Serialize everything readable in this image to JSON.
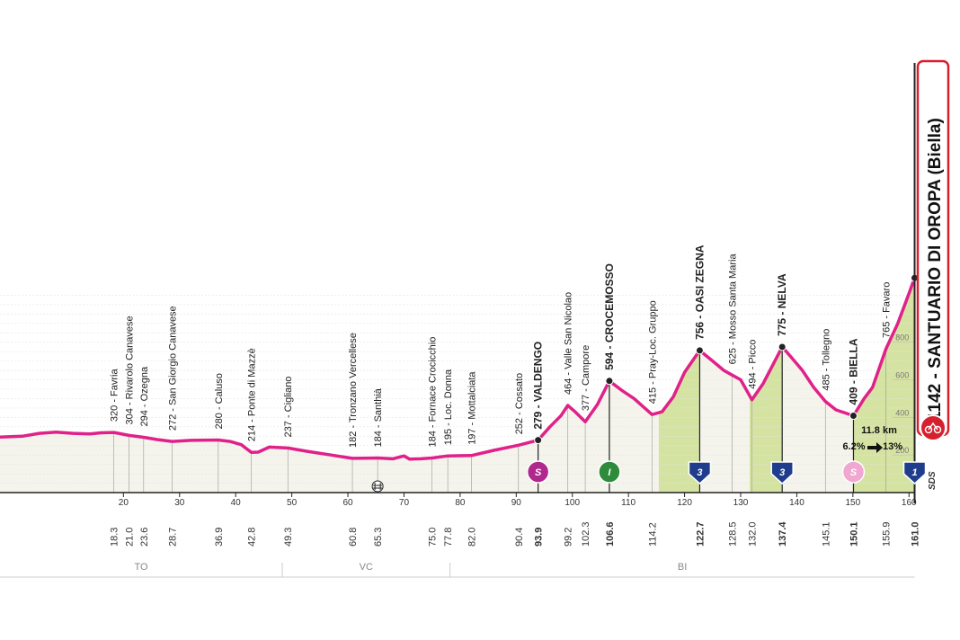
{
  "chart_data": {
    "type": "area",
    "xlim": [
      -2,
      163
    ],
    "ylim": [
      0,
      1200
    ],
    "x_ticks": [
      20,
      30,
      40,
      50,
      60,
      70,
      80,
      90,
      100,
      110,
      120,
      130,
      140,
      150,
      160
    ],
    "alt_ticks": [
      200,
      400,
      600,
      800
    ],
    "profile": [
      {
        "x": -2,
        "y": 295
      },
      {
        "x": 2,
        "y": 300
      },
      {
        "x": 5,
        "y": 315
      },
      {
        "x": 8,
        "y": 322
      },
      {
        "x": 11,
        "y": 315
      },
      {
        "x": 14,
        "y": 312
      },
      {
        "x": 16,
        "y": 318
      },
      {
        "x": 18.3,
        "y": 320
      },
      {
        "x": 21.0,
        "y": 304
      },
      {
        "x": 23.6,
        "y": 294
      },
      {
        "x": 26,
        "y": 282
      },
      {
        "x": 28.7,
        "y": 272
      },
      {
        "x": 32,
        "y": 278
      },
      {
        "x": 36.9,
        "y": 280
      },
      {
        "x": 39,
        "y": 272
      },
      {
        "x": 41,
        "y": 255
      },
      {
        "x": 42.8,
        "y": 214
      },
      {
        "x": 44,
        "y": 215
      },
      {
        "x": 46,
        "y": 242
      },
      {
        "x": 49.3,
        "y": 237
      },
      {
        "x": 53,
        "y": 218
      },
      {
        "x": 57,
        "y": 200
      },
      {
        "x": 60.8,
        "y": 182
      },
      {
        "x": 63,
        "y": 183
      },
      {
        "x": 65.3,
        "y": 184
      },
      {
        "x": 68,
        "y": 180
      },
      {
        "x": 70,
        "y": 195
      },
      {
        "x": 71,
        "y": 178
      },
      {
        "x": 73,
        "y": 180
      },
      {
        "x": 75.0,
        "y": 184
      },
      {
        "x": 77.8,
        "y": 195
      },
      {
        "x": 82.0,
        "y": 197
      },
      {
        "x": 86,
        "y": 225
      },
      {
        "x": 90.4,
        "y": 252
      },
      {
        "x": 93.9,
        "y": 279
      },
      {
        "x": 96,
        "y": 350
      },
      {
        "x": 98,
        "y": 410
      },
      {
        "x": 99.2,
        "y": 464
      },
      {
        "x": 100.5,
        "y": 430
      },
      {
        "x": 102.3,
        "y": 377
      },
      {
        "x": 104.5,
        "y": 470
      },
      {
        "x": 106.6,
        "y": 594
      },
      {
        "x": 109,
        "y": 540
      },
      {
        "x": 111,
        "y": 500
      },
      {
        "x": 114.2,
        "y": 415
      },
      {
        "x": 116,
        "y": 430
      },
      {
        "x": 118,
        "y": 510
      },
      {
        "x": 120,
        "y": 640
      },
      {
        "x": 122.7,
        "y": 756
      },
      {
        "x": 125,
        "y": 700
      },
      {
        "x": 127,
        "y": 650
      },
      {
        "x": 128.5,
        "y": 625
      },
      {
        "x": 130,
        "y": 600
      },
      {
        "x": 132.0,
        "y": 494
      },
      {
        "x": 134,
        "y": 580
      },
      {
        "x": 137.4,
        "y": 775
      },
      {
        "x": 139,
        "y": 720
      },
      {
        "x": 141,
        "y": 650
      },
      {
        "x": 143,
        "y": 560
      },
      {
        "x": 145.1,
        "y": 485
      },
      {
        "x": 147,
        "y": 440
      },
      {
        "x": 150.1,
        "y": 409
      },
      {
        "x": 152,
        "y": 500
      },
      {
        "x": 153.5,
        "y": 560
      },
      {
        "x": 155.9,
        "y": 765
      },
      {
        "x": 158,
        "y": 900
      },
      {
        "x": 160,
        "y": 1060
      },
      {
        "x": 161.0,
        "y": 1142
      }
    ],
    "shaded_climbs": [
      [
        115.4,
        122.7
      ],
      [
        131.6,
        137.4
      ],
      [
        150.1,
        161.0
      ]
    ],
    "waypoints": [
      {
        "km": 18.3,
        "km_label": "18.3",
        "x": 18.3,
        "y": 320,
        "label": "320 - Favria",
        "bold": false
      },
      {
        "km": 21.0,
        "km_label": "21.0",
        "x": 21.0,
        "y": 304,
        "label": "304 - Rivarolo Canavese",
        "bold": false
      },
      {
        "km": 23.6,
        "km_label": "23.6",
        "x": 23.6,
        "y": 294,
        "label": "294 - Ozegna",
        "bold": false
      },
      {
        "km": 28.7,
        "km_label": "28.7",
        "x": 28.7,
        "y": 272,
        "label": "272 - San Giorgio Canavese",
        "bold": false
      },
      {
        "km": 36.9,
        "km_label": "36.9",
        "x": 36.9,
        "y": 280,
        "label": "280 - Caluso",
        "bold": false
      },
      {
        "km": 42.8,
        "km_label": "42.8",
        "x": 42.8,
        "y": 214,
        "label": "214 - Ponte di Mazzè",
        "bold": false
      },
      {
        "km": 49.3,
        "km_label": "49.3",
        "x": 49.3,
        "y": 237,
        "label": "237 - Cigliano",
        "bold": false
      },
      {
        "km": 60.8,
        "km_label": "60.8",
        "x": 60.8,
        "y": 182,
        "label": "182 - Tronzano Vercellese",
        "bold": false
      },
      {
        "km": 65.3,
        "km_label": "65.3",
        "x": 65.3,
        "y": 184,
        "label": "184 - Santhià",
        "bold": false
      },
      {
        "km": 75.0,
        "km_label": "75.0",
        "x": 75.0,
        "y": 184,
        "label": "184 - Fornace Crocicchio",
        "bold": false
      },
      {
        "km": 77.8,
        "km_label": "77.8",
        "x": 77.8,
        "y": 195,
        "label": "195 - Loc. Donna",
        "bold": false
      },
      {
        "km": 82.0,
        "km_label": "82.0",
        "x": 82.0,
        "y": 197,
        "label": "197 - Mottalciata",
        "bold": false
      },
      {
        "km": 90.4,
        "km_label": "90.4",
        "x": 90.4,
        "y": 252,
        "label": "252 - Cossato",
        "bold": false
      },
      {
        "km": 93.9,
        "km_label": "93.9",
        "x": 93.9,
        "y": 279,
        "label": "279 - VALDENGO",
        "bold": true
      },
      {
        "km": 99.2,
        "km_label": "99.2",
        "x": 99.2,
        "y": 464,
        "label": "464 - Valle San Nicolao",
        "bold": false
      },
      {
        "km": 102.3,
        "km_label": "102.3",
        "x": 102.3,
        "y": 377,
        "label": "377 - Campore",
        "bold": false
      },
      {
        "km": 106.6,
        "km_label": "106.6",
        "x": 106.6,
        "y": 594,
        "label": "594 - CROCEMOSSO",
        "bold": true
      },
      {
        "km": 114.2,
        "km_label": "114.2",
        "x": 114.2,
        "y": 415,
        "label": "415 - Pray-Loc. Gruppo",
        "bold": false
      },
      {
        "km": 122.7,
        "km_label": "122.7",
        "x": 122.7,
        "y": 756,
        "label": "756 - OASI ZEGNA",
        "bold": true
      },
      {
        "km": 128.5,
        "km_label": "128.5",
        "x": 128.5,
        "y": 625,
        "label": "625 - Mosso Santa Maria",
        "bold": false
      },
      {
        "km": 132.0,
        "km_label": "132.0",
        "x": 132.0,
        "y": 494,
        "label": "494 - Picco",
        "bold": false
      },
      {
        "km": 137.4,
        "km_label": "137.4",
        "x": 137.4,
        "y": 775,
        "label": "775 - NELVA",
        "bold": true
      },
      {
        "km": 145.1,
        "km_label": "145.1",
        "x": 145.1,
        "y": 485,
        "label": "485 - Tollegno",
        "bold": false
      },
      {
        "km": 150.1,
        "km_label": "150.1",
        "x": 150.1,
        "y": 409,
        "label": "409 - BIELLA",
        "bold": true
      },
      {
        "km": 155.9,
        "km_label": "155.9",
        "x": 155.9,
        "y": 765,
        "label": "765 - Favaro",
        "bold": false
      },
      {
        "km": 161.0,
        "km_label": "161.0",
        "x": 161.0,
        "y": 1142,
        "label": "",
        "bold": true
      }
    ],
    "finish": {
      "x": 161.0,
      "label": "1142 - SANTUARIO DI OROPA (Biella)"
    },
    "climb_stats": {
      "distance": "11.8 km",
      "gradient": "6.2%",
      "max": "13%"
    },
    "badges": [
      {
        "x": 93.9,
        "text": "S",
        "color": "#b0288d",
        "shape": "circle",
        "text_color": "#ffffff"
      },
      {
        "x": 106.6,
        "text": "I",
        "color": "#2e8b3c",
        "shape": "circle",
        "text_color": "#ffffff"
      },
      {
        "x": 122.7,
        "text": "3",
        "color": "#1f3d8c",
        "shape": "shield",
        "text_color": "#ffffff"
      },
      {
        "x": 137.4,
        "text": "3",
        "color": "#1f3d8c",
        "shape": "shield",
        "text_color": "#ffffff"
      },
      {
        "x": 150.1,
        "text": "S",
        "color": "#f0a8d0",
        "shape": "circle",
        "text_color": "#ffffff"
      },
      {
        "x": 161.0,
        "text": "1",
        "color": "#1f3d8c",
        "shape": "shield",
        "text_color": "#ffffff"
      }
    ],
    "level_crossing_km": 65.3,
    "provinces": [
      {
        "name": "TO",
        "from": -2,
        "to": 48.3
      },
      {
        "name": "VC",
        "from": 48.3,
        "to": 78.2
      },
      {
        "name": "BI",
        "from": 78.2,
        "to": 161.0
      }
    ],
    "sds_label": "SDS",
    "colors": {
      "profile": "#e0218a",
      "fill": "#f4f4ec",
      "climb_fill": "#d5e3a2",
      "finish_box": "#d7202e"
    }
  }
}
